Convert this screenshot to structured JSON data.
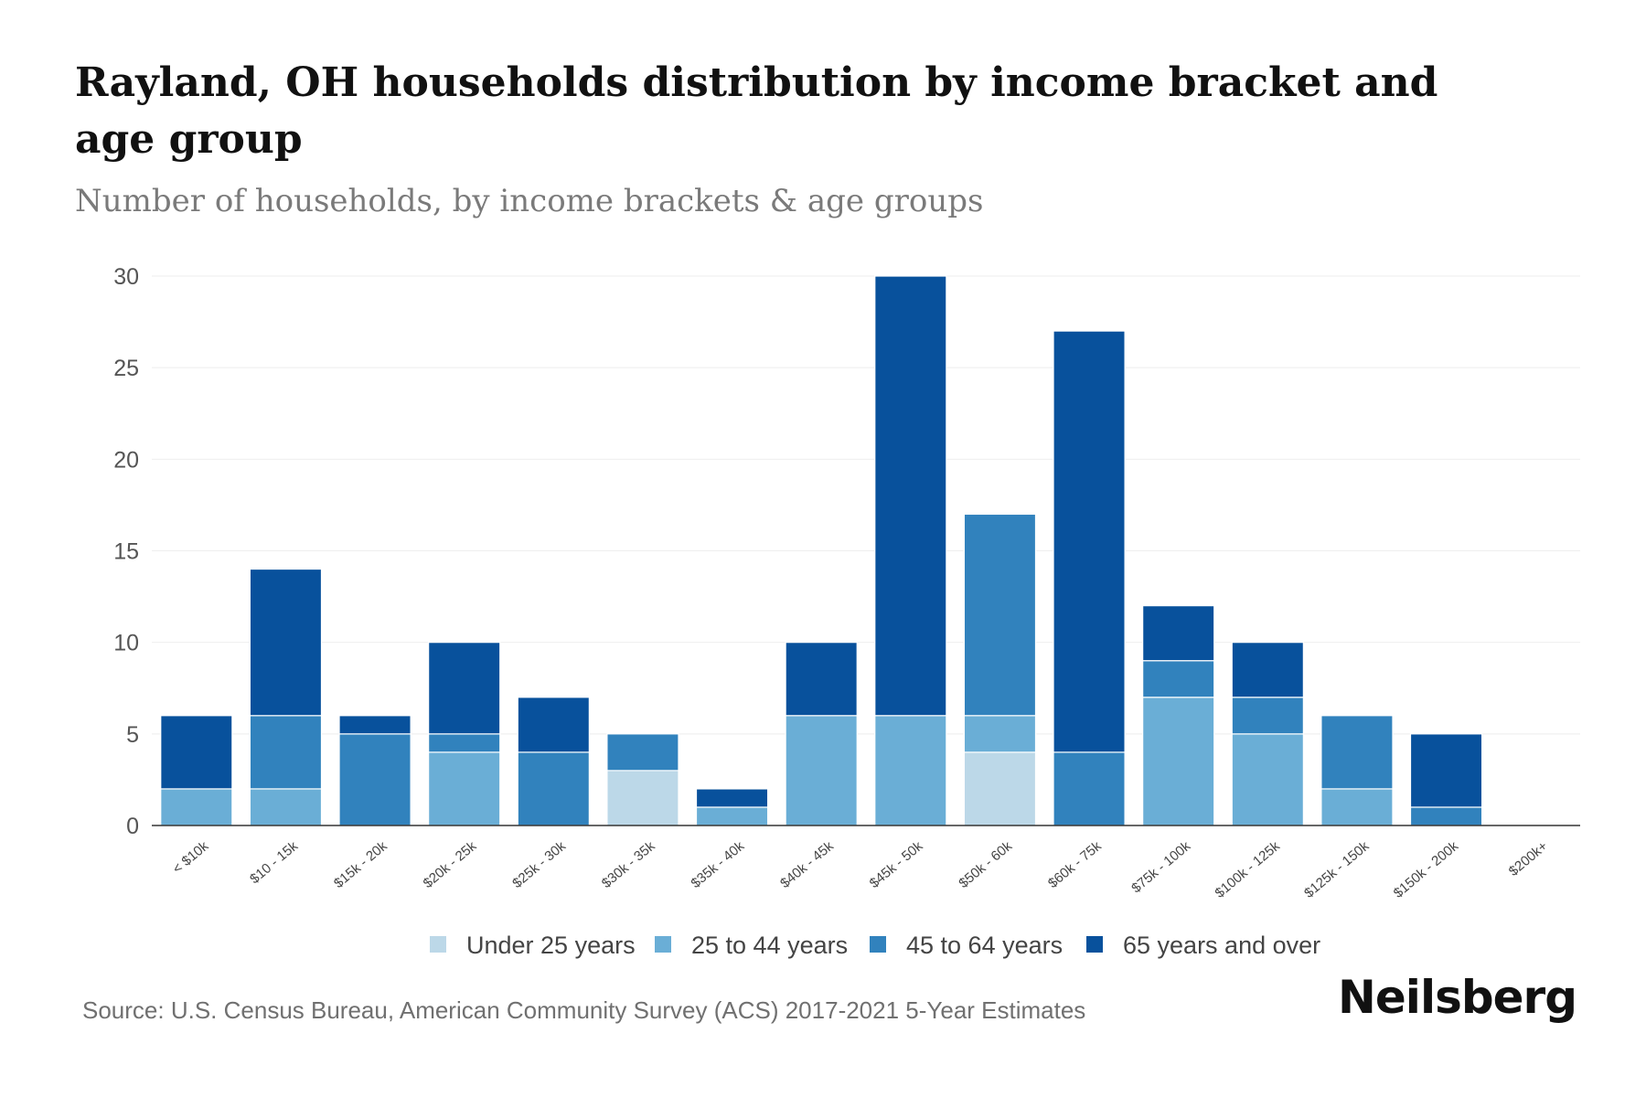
{
  "header": {
    "title": "Rayland, OH households distribution by income bracket and age group",
    "subtitle": "Number of households, by income brackets & age groups"
  },
  "footer": {
    "source": "Source: U.S. Census Bureau, American Community Survey (ACS) 2017-2021 5-Year Estimates",
    "brand": "Neilsberg"
  },
  "colors": {
    "under_25": "#bcd8e8",
    "age_25_44": "#6aaed6",
    "age_45_64": "#3182bd",
    "age_65_over": "#08519c",
    "grid": "#eeeeee",
    "axis": "#333333"
  },
  "chart_data": {
    "type": "bar",
    "stacked": true,
    "title": "Rayland, OH households distribution by income bracket and age group",
    "subtitle": "Number of households, by income brackets & age groups",
    "xlabel": "",
    "ylabel": "",
    "ylim": [
      0,
      30
    ],
    "yticks": [
      0,
      5,
      10,
      15,
      20,
      25,
      30
    ],
    "grid": true,
    "legend_position": "bottom",
    "categories": [
      "< $10k",
      "$10 - 15k",
      "$15k - 20k",
      "$20k - 25k",
      "$25k - 30k",
      "$30k - 35k",
      "$35k - 40k",
      "$40k - 45k",
      "$45k - 50k",
      "$50k - 60k",
      "$60k - 75k",
      "$75k - 100k",
      "$100k - 125k",
      "$125k - 150k",
      "$150k - 200k",
      "$200k+"
    ],
    "series": [
      {
        "name": "Under 25 years",
        "color_key": "under_25",
        "values": [
          0,
          0,
          0,
          0,
          0,
          3,
          0,
          0,
          0,
          4,
          0,
          0,
          0,
          0,
          0,
          0
        ]
      },
      {
        "name": "25 to 44 years",
        "color_key": "age_25_44",
        "values": [
          2,
          2,
          0,
          4,
          0,
          0,
          1,
          6,
          6,
          2,
          0,
          7,
          5,
          2,
          0,
          0
        ]
      },
      {
        "name": "45 to 64 years",
        "color_key": "age_45_64",
        "values": [
          0,
          4,
          5,
          1,
          4,
          2,
          0,
          0,
          0,
          11,
          4,
          2,
          2,
          4,
          1,
          0
        ]
      },
      {
        "name": "65 years and over",
        "color_key": "age_65_over",
        "values": [
          4,
          8,
          1,
          5,
          3,
          0,
          1,
          4,
          24,
          0,
          23,
          3,
          3,
          0,
          4,
          0
        ]
      }
    ]
  }
}
